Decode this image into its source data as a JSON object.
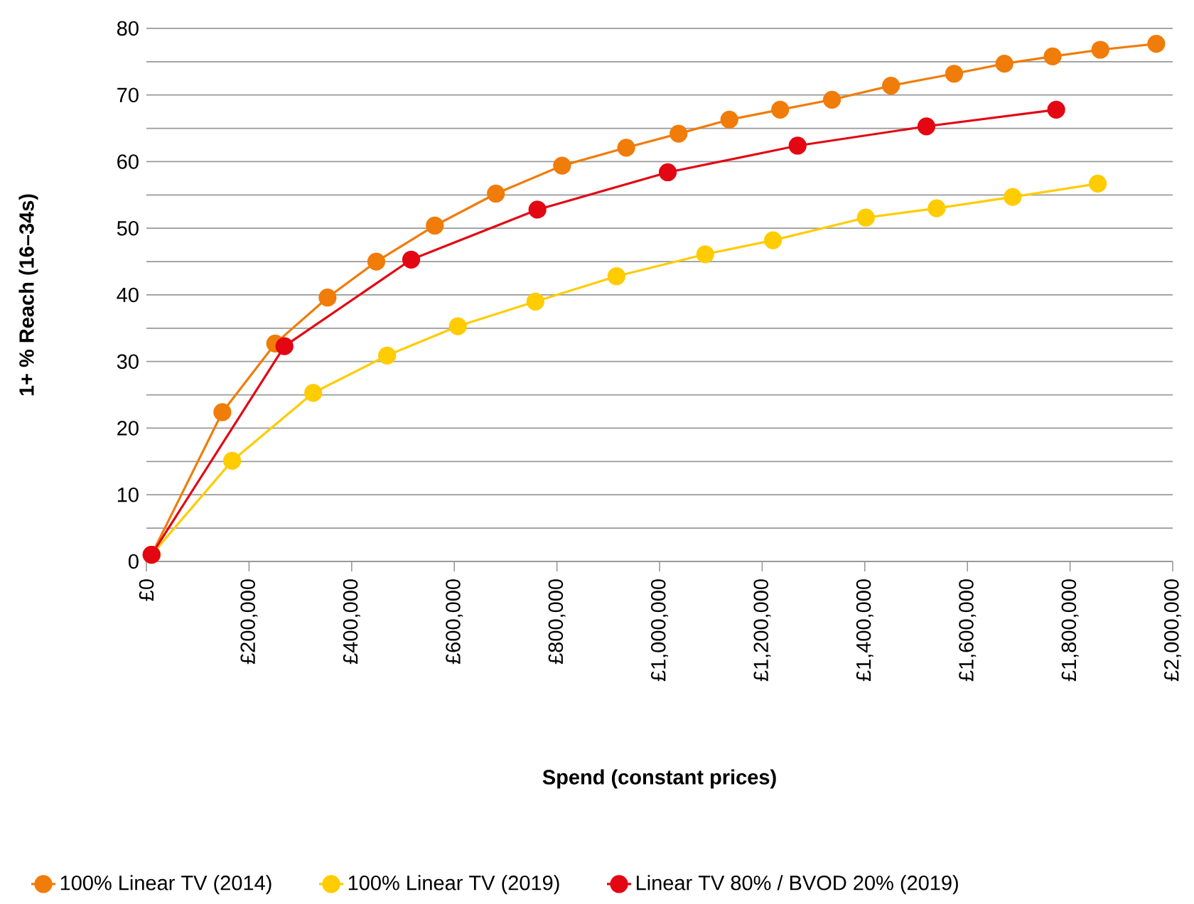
{
  "chart_data": {
    "type": "line",
    "xlabel": "Spend (constant prices)",
    "ylabel": "1+ % Reach (16–34s)",
    "xlim": [
      0,
      2000000
    ],
    "xticks": [
      {
        "value": 0,
        "label": "£0"
      },
      {
        "value": 200000,
        "label": "£200,000"
      },
      {
        "value": 400000,
        "label": "£400,000"
      },
      {
        "value": 600000,
        "label": "£600,000"
      },
      {
        "value": 800000,
        "label": "£800,000"
      },
      {
        "value": 1000000,
        "label": "£1,000,000"
      },
      {
        "value": 1200000,
        "label": "£1,200,000"
      },
      {
        "value": 1400000,
        "label": "£1,400,000"
      },
      {
        "value": 1600000,
        "label": "£1,600,000"
      },
      {
        "value": 1800000,
        "label": "£1,800,000"
      },
      {
        "value": 2000000,
        "label": "£2,000,000"
      }
    ],
    "ylim": [
      0,
      80
    ],
    "yticks": [
      0,
      {
        "value": 5,
        "label": null
      },
      10,
      {
        "value": 15,
        "label": null
      },
      20,
      {
        "value": 25,
        "label": null
      },
      30,
      {
        "value": 35,
        "label": null
      },
      40,
      {
        "value": 45,
        "label": null
      },
      50,
      {
        "value": 55,
        "label": null
      },
      60,
      {
        "value": 65,
        "label": null
      },
      70,
      {
        "value": 75,
        "label": null
      },
      80
    ],
    "grid": "y",
    "legend": "bottom",
    "marker": "circle",
    "line_style": "solid",
    "series": [
      {
        "name": "100% Linear TV (2014)",
        "color": "#f07c0a",
        "x": [
          10000,
          148000,
          251000,
          353000,
          448000,
          562000,
          681000,
          810000,
          935000,
          1037000,
          1136000,
          1235000,
          1336000,
          1451000,
          1574000,
          1672000,
          1766000,
          1859000,
          1968000
        ],
        "values": [
          1,
          22.4,
          32.7,
          39.6,
          45.0,
          50.4,
          55.2,
          59.4,
          62.1,
          64.2,
          66.3,
          67.8,
          69.3,
          71.4,
          73.2,
          74.7,
          75.8,
          76.8,
          77.7
        ]
      },
      {
        "name": "100% Linear TV (2019)",
        "color": "#ffcc00",
        "x": [
          10000,
          167000,
          325000,
          469000,
          607000,
          758000,
          916000,
          1089000,
          1221000,
          1402000,
          1540000,
          1688000,
          1854000
        ],
        "values": [
          1,
          15.1,
          25.3,
          30.9,
          35.3,
          39.0,
          42.8,
          46.1,
          48.2,
          51.6,
          53.0,
          54.7,
          56.7
        ]
      },
      {
        "name": "Linear TV 80% / BVOD 20% (2019)",
        "color": "#e30613",
        "x": [
          10000,
          269000,
          516000,
          762000,
          1016000,
          1269000,
          1520000,
          1773000
        ],
        "values": [
          1,
          32.3,
          45.3,
          52.8,
          58.4,
          62.4,
          65.3,
          67.8
        ]
      }
    ]
  }
}
